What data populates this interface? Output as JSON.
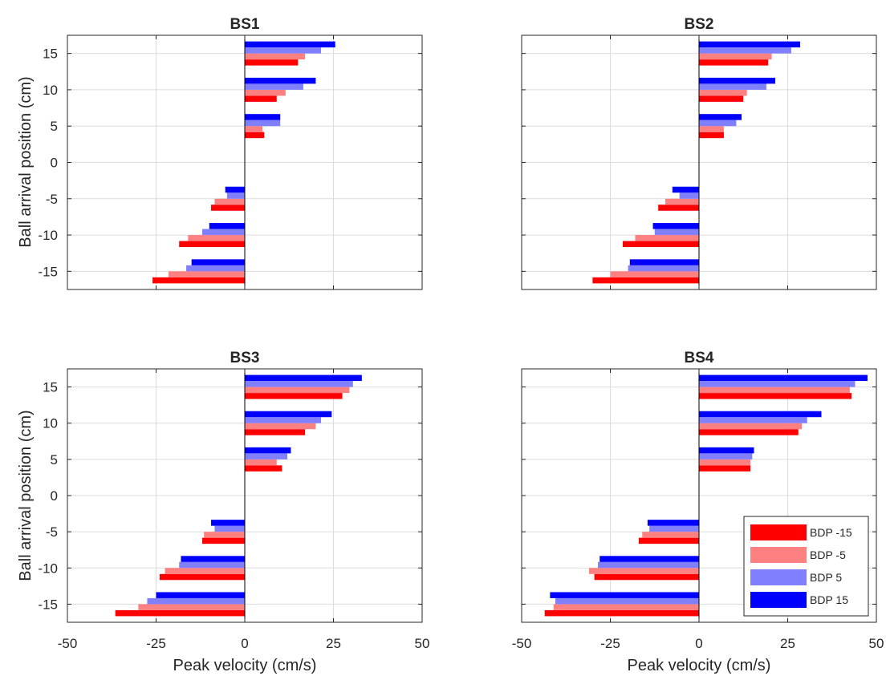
{
  "figure": {
    "xlabel": "Peak velocity (cm/s)",
    "ylabel": "Ball arrival position (cm)"
  },
  "legend": {
    "placement": "lower-right",
    "panel": 3,
    "entries": [
      "BDP -15",
      "BDP -5",
      "BDP 5",
      "BDP 15"
    ]
  },
  "colors": {
    "BDP -15": "#ff0000",
    "BDP -5": "#ff8080",
    "BDP 5": "#8080ff",
    "BDP 15": "#0000ff"
  },
  "chart_data": [
    {
      "type": "bar",
      "orientation": "horizontal",
      "title": "BS1",
      "categories": [
        -15,
        -10,
        -5,
        5,
        10,
        15
      ],
      "xlim": [
        -50,
        50
      ],
      "ylim": [
        -17.5,
        17.5
      ],
      "xticks": [
        "-50",
        "-25",
        "0",
        "25",
        "50"
      ],
      "yticks": [
        "-15",
        "-10",
        "-5",
        "0",
        "5",
        "10",
        "15"
      ],
      "show_xticklabels": false,
      "show_yticklabels": true,
      "grid": true,
      "series": [
        {
          "name": "BDP -15",
          "values": [
            -26,
            -18.5,
            -9.5,
            5.5,
            9,
            15
          ]
        },
        {
          "name": "BDP -5",
          "values": [
            -21.5,
            -16,
            -8.5,
            5,
            11.5,
            17
          ]
        },
        {
          "name": "BDP 5",
          "values": [
            -16.5,
            -12,
            -5,
            10,
            16.5,
            21.5
          ]
        },
        {
          "name": "BDP 15",
          "values": [
            -15,
            -10,
            -5.5,
            10,
            20,
            25.5
          ]
        }
      ]
    },
    {
      "type": "bar",
      "orientation": "horizontal",
      "title": "BS2",
      "categories": [
        -15,
        -10,
        -5,
        5,
        10,
        15
      ],
      "xlim": [
        -50,
        50
      ],
      "ylim": [
        -17.5,
        17.5
      ],
      "xticks": [
        "-50",
        "-25",
        "0",
        "25",
        "50"
      ],
      "yticks": [
        "-15",
        "-10",
        "-5",
        "0",
        "5",
        "10",
        "15"
      ],
      "show_xticklabels": false,
      "show_yticklabels": false,
      "grid": true,
      "series": [
        {
          "name": "BDP -15",
          "values": [
            -30,
            -21.5,
            -11.5,
            7,
            12.5,
            19.5
          ]
        },
        {
          "name": "BDP -5",
          "values": [
            -25,
            -18,
            -9.5,
            7,
            13.5,
            20.5
          ]
        },
        {
          "name": "BDP 5",
          "values": [
            -20,
            -12.5,
            -5.5,
            10.5,
            19,
            26
          ]
        },
        {
          "name": "BDP 15",
          "values": [
            -19.5,
            -13,
            -7.5,
            12,
            21.5,
            28.5
          ]
        }
      ]
    },
    {
      "type": "bar",
      "orientation": "horizontal",
      "title": "BS3",
      "categories": [
        -15,
        -10,
        -5,
        5,
        10,
        15
      ],
      "xlim": [
        -50,
        50
      ],
      "ylim": [
        -17.5,
        17.5
      ],
      "xticks": [
        "-50",
        "-25",
        "0",
        "25",
        "50"
      ],
      "yticks": [
        "-15",
        "-10",
        "-5",
        "0",
        "5",
        "10",
        "15"
      ],
      "show_xticklabels": true,
      "show_yticklabels": true,
      "grid": true,
      "series": [
        {
          "name": "BDP -15",
          "values": [
            -36.5,
            -24,
            -12,
            10.5,
            17,
            27.5
          ]
        },
        {
          "name": "BDP -5",
          "values": [
            -30,
            -22.5,
            -11.5,
            9,
            20,
            29.5
          ]
        },
        {
          "name": "BDP 5",
          "values": [
            -27.5,
            -18.5,
            -8.5,
            12,
            21.5,
            30.5
          ]
        },
        {
          "name": "BDP 15",
          "values": [
            -25,
            -18,
            -9.5,
            13,
            24.5,
            33
          ]
        }
      ]
    },
    {
      "type": "bar",
      "orientation": "horizontal",
      "title": "BS4",
      "categories": [
        -15,
        -10,
        -5,
        5,
        10,
        15
      ],
      "xlim": [
        -50,
        50
      ],
      "ylim": [
        -17.5,
        17.5
      ],
      "xticks": [
        "-50",
        "-25",
        "0",
        "25",
        "50"
      ],
      "yticks": [
        "-15",
        "-10",
        "-5",
        "0",
        "5",
        "10",
        "15"
      ],
      "show_xticklabels": true,
      "show_yticklabels": false,
      "grid": true,
      "series": [
        {
          "name": "BDP -15",
          "values": [
            -43.5,
            -29.5,
            -17,
            14.5,
            28,
            43
          ]
        },
        {
          "name": "BDP -5",
          "values": [
            -41,
            -31,
            -16,
            14.5,
            29,
            42.5
          ]
        },
        {
          "name": "BDP 5",
          "values": [
            -40.5,
            -28.5,
            -14,
            15,
            30.5,
            44
          ]
        },
        {
          "name": "BDP 15",
          "values": [
            -42,
            -28,
            -14.5,
            15.5,
            34.5,
            47.5
          ]
        }
      ]
    }
  ]
}
